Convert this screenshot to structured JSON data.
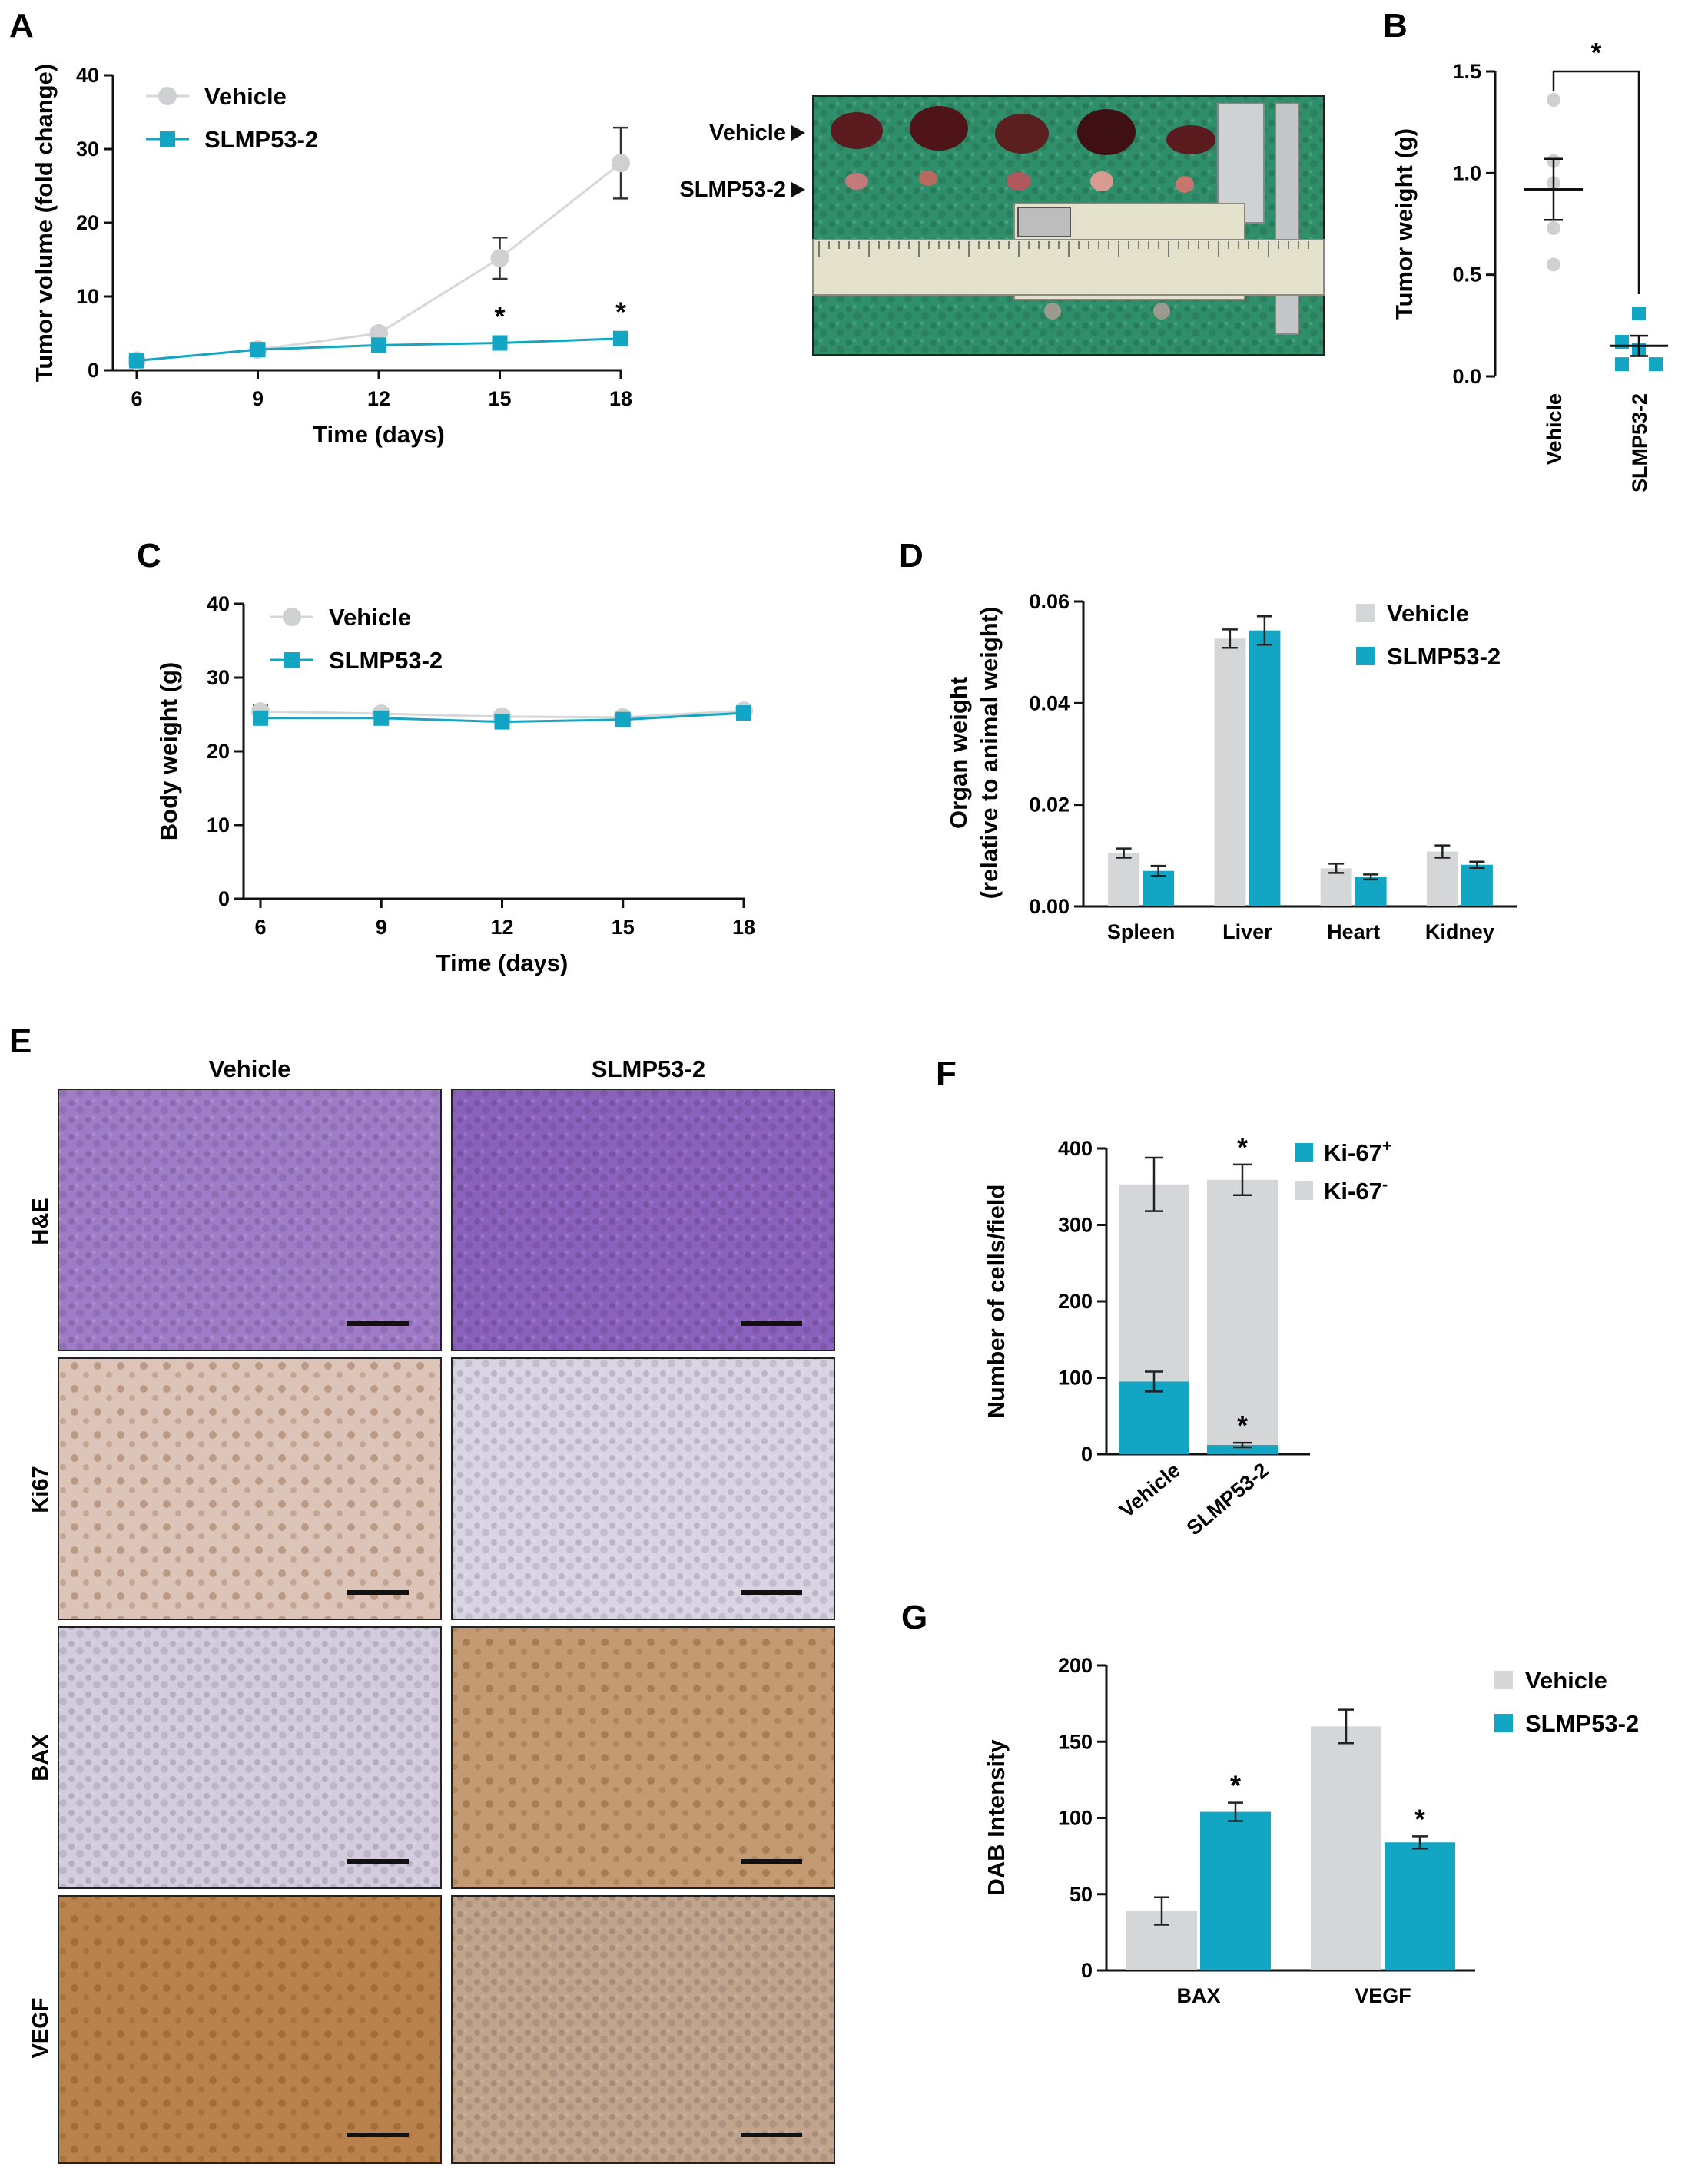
{
  "colors": {
    "vehicle": "#d5d6d8",
    "slmp": "#13a5c4",
    "vehicle_marker": "#cfd0d2",
    "axis": "#111111",
    "he_tissue": "#a07cc8",
    "ki67_vehicle": "#dcc4b8",
    "ki67_slmp": "#d8d4e4",
    "bax_vehicle": "#d3cbde",
    "bax_slmp": "#c49a72",
    "vegf_vehicle": "#b9824c",
    "vegf_slmp": "#c2a48d",
    "photo_bg": "#2f8f6a",
    "ruler": "#e4e1cc"
  },
  "labels": {
    "panel_A": "A",
    "panel_B": "B",
    "panel_C": "C",
    "panel_D": "D",
    "panel_E": "E",
    "panel_F": "F",
    "panel_G": "G",
    "photo_vehicle": "Vehicle",
    "photo_slmp": "SLMP53-2",
    "E_col_vehicle": "Vehicle",
    "E_col_slmp": "SLMP53-2",
    "E_rows": [
      "H&E",
      "Ki67",
      "BAX",
      "VEGF"
    ],
    "star": "*"
  },
  "chart_data": [
    {
      "id": "A",
      "type": "line",
      "title": "",
      "xlabel": "Time (days)",
      "ylabel": "Tumor volume (fold change)",
      "x": [
        6,
        9,
        12,
        15,
        18
      ],
      "xticks": [
        "6",
        "9",
        "12",
        "15",
        "18"
      ],
      "ylim": [
        0,
        40
      ],
      "yticks": [
        "0",
        "10",
        "20",
        "30",
        "40"
      ],
      "series": [
        {
          "name": "Vehicle",
          "values": [
            1.3,
            2.8,
            5.0,
            15.2,
            28.1
          ],
          "error": [
            0.3,
            0.4,
            0.6,
            2.8,
            4.8
          ],
          "marker": "circle"
        },
        {
          "name": "SLMP53-2",
          "values": [
            1.3,
            2.8,
            3.4,
            3.7,
            4.3
          ],
          "error": [
            0.3,
            0.3,
            0.4,
            0.5,
            0.5
          ],
          "marker": "square"
        }
      ],
      "significance": [
        {
          "x": 15,
          "label": "*"
        },
        {
          "x": 18,
          "label": "*"
        }
      ],
      "legend": "top-left"
    },
    {
      "id": "B",
      "type": "scatter",
      "title": "",
      "xlabel": "",
      "ylabel": "Tumor weight (g)",
      "categories": [
        "Vehicle",
        "SLMP53-2"
      ],
      "ylim": [
        0,
        1.5
      ],
      "yticks": [
        "0.0",
        "0.5",
        "1.0",
        "1.5"
      ],
      "series": [
        {
          "name": "Vehicle",
          "points": [
            1.36,
            1.06,
            0.95,
            0.73,
            0.55
          ],
          "mean": 0.92,
          "sem": 0.15
        },
        {
          "name": "SLMP53-2",
          "points": [
            0.31,
            0.17,
            0.13,
            0.06,
            0.06
          ],
          "mean": 0.15,
          "sem": 0.05
        }
      ],
      "significance": [
        {
          "between": [
            "Vehicle",
            "SLMP53-2"
          ],
          "label": "*"
        }
      ]
    },
    {
      "id": "C",
      "type": "line",
      "title": "",
      "xlabel": "Time (days)",
      "ylabel": "Body weight (g)",
      "x": [
        6,
        9,
        12,
        15,
        18
      ],
      "xticks": [
        "6",
        "9",
        "12",
        "15",
        "18"
      ],
      "ylim": [
        0,
        40
      ],
      "yticks": [
        "0",
        "10",
        "20",
        "30",
        "40"
      ],
      "series": [
        {
          "name": "Vehicle",
          "values": [
            25.4,
            25.1,
            24.7,
            24.6,
            25.5
          ],
          "error": [
            0.8,
            0.4,
            0.4,
            0.3,
            0.4
          ],
          "marker": "circle"
        },
        {
          "name": "SLMP53-2",
          "values": [
            24.5,
            24.5,
            24.0,
            24.3,
            25.2
          ],
          "error": [
            0.5,
            0.4,
            0.3,
            0.3,
            0.3
          ],
          "marker": "square"
        }
      ],
      "legend": "top-left"
    },
    {
      "id": "D",
      "type": "bar",
      "title": "",
      "xlabel": "",
      "ylabel": "Organ weight",
      "ylabel2": "(relative to animal weight)",
      "categories": [
        "Spleen",
        "Liver",
        "Heart",
        "Kidney"
      ],
      "ylim": [
        0,
        0.06
      ],
      "yticks": [
        "0.00",
        "0.02",
        "0.04",
        "0.06"
      ],
      "series": [
        {
          "name": "Vehicle",
          "values": [
            0.0105,
            0.0527,
            0.0075,
            0.0108
          ],
          "error": [
            0.0009,
            0.0018,
            0.0009,
            0.0012
          ]
        },
        {
          "name": "SLMP53-2",
          "values": [
            0.007,
            0.0543,
            0.0058,
            0.0082
          ],
          "error": [
            0.001,
            0.0028,
            0.0005,
            0.0006
          ]
        }
      ],
      "legend": "top-right"
    },
    {
      "id": "F",
      "type": "bar",
      "stacked": true,
      "title": "",
      "xlabel": "",
      "ylabel": "Number of cells/field",
      "categories": [
        "Vehicle",
        "SLMP53-2"
      ],
      "ylim": [
        0,
        400
      ],
      "yticks": [
        "0",
        "100",
        "200",
        "300",
        "400"
      ],
      "series": [
        {
          "name": "Ki-67",
          "sup": "+",
          "values": [
            95,
            12
          ],
          "error": [
            13,
            3
          ]
        },
        {
          "name": "Ki-67",
          "sup": "-",
          "total_values": [
            353,
            359
          ],
          "total_error": [
            35,
            20
          ]
        }
      ],
      "significance": [
        {
          "category": "SLMP53-2",
          "series": "Ki-67+",
          "label": "*"
        },
        {
          "category": "SLMP53-2",
          "series": "total",
          "label": "*"
        }
      ],
      "legend": "top-right"
    },
    {
      "id": "G",
      "type": "bar",
      "title": "",
      "xlabel": "",
      "ylabel": "DAB Intensity",
      "categories": [
        "BAX",
        "VEGF"
      ],
      "ylim": [
        0,
        200
      ],
      "yticks": [
        "0",
        "50",
        "100",
        "150",
        "200"
      ],
      "series": [
        {
          "name": "Vehicle",
          "values": [
            39,
            160
          ],
          "error": [
            9,
            11
          ]
        },
        {
          "name": "SLMP53-2",
          "values": [
            104,
            84
          ],
          "error": [
            6,
            4
          ]
        }
      ],
      "significance": [
        {
          "category": "BAX",
          "series": "SLMP53-2",
          "label": "*"
        },
        {
          "category": "VEGF",
          "series": "SLMP53-2",
          "label": "*"
        }
      ],
      "legend": "top-right"
    }
  ]
}
